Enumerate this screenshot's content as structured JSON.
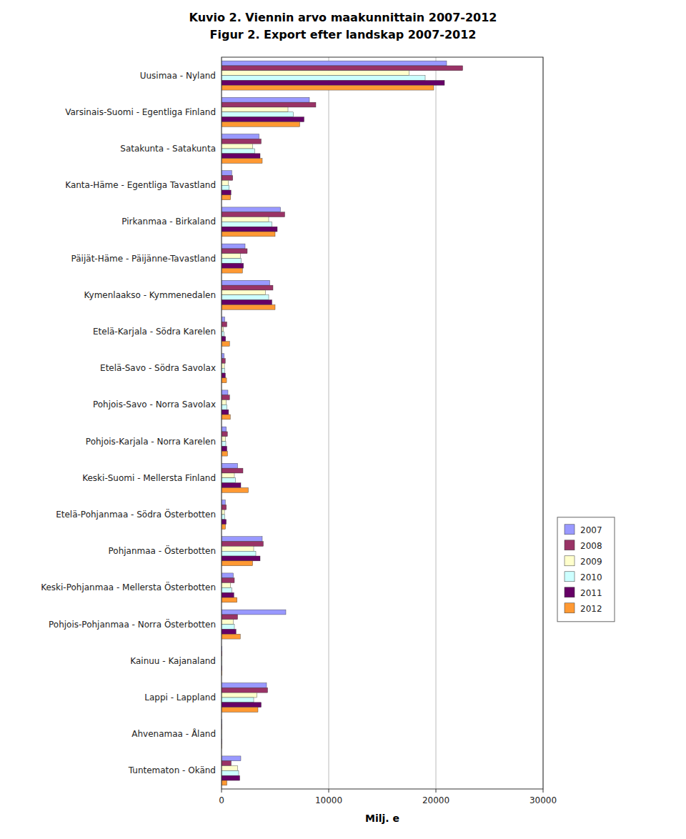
{
  "chart_data": {
    "type": "bar",
    "orientation": "horizontal",
    "title": "Kuvio 2. Viennin arvo maakunnittain 2007-2012",
    "subtitle": "Figur 2. Export efter landskap 2007-2012",
    "x_label": "Milj. e",
    "xlim": [
      0,
      30000
    ],
    "xticks": [
      0,
      10000,
      20000,
      30000
    ],
    "grid": true,
    "legend": "right",
    "categories": [
      "Uusimaa - Nyland",
      "Varsinais-Suomi - Egentliga Finland",
      "Satakunta - Satakunta",
      "Kanta-Häme - Egentliga Tavastland",
      "Pirkanmaa - Birkaland",
      "Päijät-Häme - Päijänne-Tavastland",
      "Kymenlaakso - Kymmenedalen",
      "Etelä-Karjala - Södra Karelen",
      "Etelä-Savo - Södra Savolax",
      "Pohjois-Savo - Norra Savolax",
      "Pohjois-Karjala - Norra Karelen",
      "Keski-Suomi - Mellersta Finland",
      "Etelä-Pohjanmaa - Södra Österbotten",
      "Pohjanmaa - Österbotten",
      "Keski-Pohjanmaa - Mellersta Österbotten",
      "Pohjois-Pohjanmaa - Norra Österbotten",
      "Kainuu - Kajanaland",
      "Lappi - Lappland",
      "Ahvenamaa - Åland",
      "Tuntematon - Okänd"
    ],
    "series": [
      {
        "name": "2007",
        "color": "#9999ff",
        "values": [
          21000,
          8200,
          3500,
          950,
          5500,
          2200,
          4500,
          300,
          250,
          600,
          450,
          1500,
          350,
          3800,
          1100,
          6000,
          50,
          4200,
          30,
          1800
        ]
      },
      {
        "name": "2008",
        "color": "#993366",
        "values": [
          22500,
          8800,
          3700,
          1050,
          5900,
          2400,
          4800,
          500,
          350,
          750,
          550,
          2000,
          450,
          3900,
          1200,
          1500,
          50,
          4300,
          30,
          900
        ]
      },
      {
        "name": "2009",
        "color": "#ffffcc",
        "values": [
          17500,
          6200,
          2900,
          650,
          4400,
          1750,
          4100,
          180,
          270,
          450,
          370,
          1200,
          270,
          3000,
          850,
          1100,
          30,
          3300,
          20,
          1500
        ]
      },
      {
        "name": "2010",
        "color": "#ccffff",
        "values": [
          19000,
          6700,
          3100,
          720,
          4700,
          1850,
          4400,
          220,
          290,
          510,
          400,
          1300,
          300,
          3200,
          950,
          1200,
          30,
          3000,
          20,
          1600
        ]
      },
      {
        "name": "2011",
        "color": "#660066",
        "values": [
          20800,
          7700,
          3600,
          880,
          5200,
          2050,
          4700,
          380,
          360,
          660,
          500,
          1800,
          440,
          3600,
          1150,
          1350,
          40,
          3700,
          20,
          1700
        ]
      },
      {
        "name": "2012",
        "color": "#ff9933",
        "values": [
          19800,
          7300,
          3800,
          850,
          5000,
          1950,
          5000,
          750,
          470,
          820,
          560,
          2500,
          370,
          2900,
          1450,
          1750,
          40,
          3400,
          20,
          500
        ]
      }
    ]
  }
}
